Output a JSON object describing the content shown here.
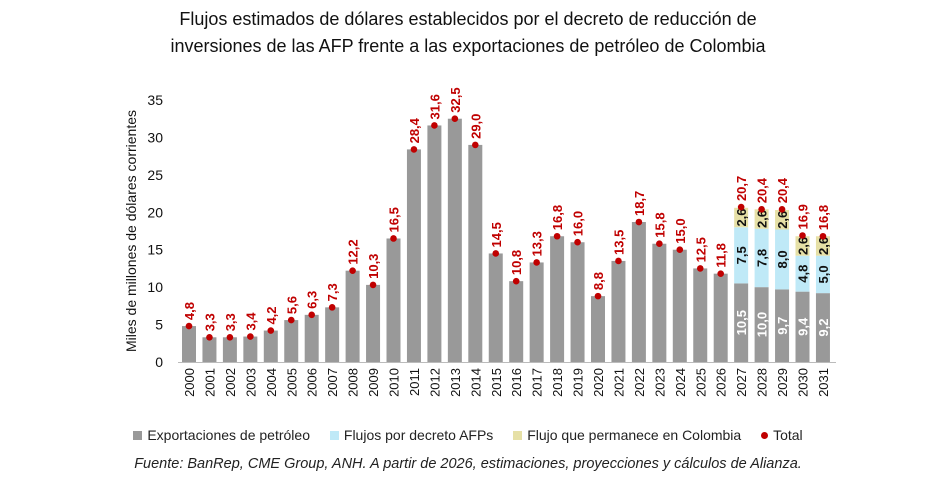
{
  "chart_data": {
    "type": "bar",
    "stacked": true,
    "title": [
      "Flujos estimados de dólares establecidos por el decreto de reducción de",
      "inversiones de las AFP frente a las exportaciones de petróleo de Colombia"
    ],
    "ylabel": "Miles de millones de dólares corrientes",
    "ylim": [
      0,
      35
    ],
    "yticks": [
      "0",
      "5",
      "10",
      "15",
      "20",
      "25",
      "30",
      "35"
    ],
    "grid": false,
    "legend_position": "bottom",
    "categories": [
      "2000",
      "2001",
      "2002",
      "2003",
      "2004",
      "2005",
      "2006",
      "2007",
      "2008",
      "2009",
      "2010",
      "2011",
      "2012",
      "2013",
      "2014",
      "2015",
      "2016",
      "2017",
      "2018",
      "2019",
      "2020",
      "2021",
      "2022",
      "2023",
      "2024",
      "2025",
      "2026",
      "2027",
      "2028",
      "2029",
      "2030",
      "2031"
    ],
    "series": [
      {
        "name": "Exportaciones de petróleo",
        "color": "#999999",
        "values": [
          4.8,
          3.3,
          3.3,
          3.4,
          4.2,
          5.6,
          6.3,
          7.3,
          12.2,
          10.3,
          16.5,
          28.4,
          31.6,
          32.5,
          29.0,
          14.5,
          10.8,
          13.3,
          16.8,
          16.0,
          8.8,
          13.5,
          18.7,
          15.8,
          15.0,
          12.5,
          11.8,
          10.5,
          10.0,
          9.7,
          9.4,
          9.2
        ],
        "labels": [
          null,
          null,
          null,
          null,
          null,
          null,
          null,
          null,
          null,
          null,
          null,
          null,
          null,
          null,
          null,
          null,
          null,
          null,
          null,
          null,
          null,
          null,
          null,
          null,
          null,
          null,
          null,
          "10,5",
          "10,0",
          "9,7",
          "9,4",
          "9,2"
        ]
      },
      {
        "name": "Flujos por decreto AFPs",
        "color": "#bfe9f7",
        "values": [
          0,
          0,
          0,
          0,
          0,
          0,
          0,
          0,
          0,
          0,
          0,
          0,
          0,
          0,
          0,
          0,
          0,
          0,
          0,
          0,
          0,
          0,
          0,
          0,
          0,
          0,
          0,
          7.5,
          7.8,
          8.0,
          4.8,
          5.0
        ],
        "labels": [
          null,
          null,
          null,
          null,
          null,
          null,
          null,
          null,
          null,
          null,
          null,
          null,
          null,
          null,
          null,
          null,
          null,
          null,
          null,
          null,
          null,
          null,
          null,
          null,
          null,
          null,
          null,
          "7,5",
          "7,8",
          "8,0",
          "4,8",
          "5,0"
        ]
      },
      {
        "name": "Flujo que permanece en Colombia",
        "color": "#e6e0a6",
        "values": [
          0,
          0,
          0,
          0,
          0,
          0,
          0,
          0,
          0,
          0,
          0,
          0,
          0,
          0,
          0,
          0,
          0,
          0,
          0,
          0,
          0,
          0,
          0,
          0,
          0,
          0,
          0,
          2.6,
          2.6,
          2.6,
          2.6,
          2.6
        ],
        "labels": [
          null,
          null,
          null,
          null,
          null,
          null,
          null,
          null,
          null,
          null,
          null,
          null,
          null,
          null,
          null,
          null,
          null,
          null,
          null,
          null,
          null,
          null,
          null,
          null,
          null,
          null,
          null,
          "2,6",
          "2,6",
          "2,6",
          "2,6",
          "2,6"
        ]
      }
    ],
    "total": {
      "name": "Total",
      "color": "#c00000",
      "values": [
        4.8,
        3.3,
        3.3,
        3.4,
        4.2,
        5.6,
        6.3,
        7.3,
        12.2,
        10.3,
        16.5,
        28.4,
        31.6,
        32.5,
        29.0,
        14.5,
        10.8,
        13.3,
        16.8,
        16.0,
        8.8,
        13.5,
        18.7,
        15.8,
        15.0,
        12.5,
        11.8,
        20.7,
        20.4,
        20.4,
        16.9,
        16.8
      ],
      "labels": [
        "4,8",
        "3,3",
        "3,3",
        "3,4",
        "4,2",
        "5,6",
        "6,3",
        "7,3",
        "12,2",
        "10,3",
        "16,5",
        "28,4",
        "31,6",
        "32,5",
        "29,0",
        "14,5",
        "10,8",
        "13,3",
        "16,8",
        "16,0",
        "8,8",
        "13,5",
        "18,7",
        "15,8",
        "15,0",
        "12,5",
        "11,8",
        "20,7",
        "20,4",
        "20,4",
        "16,9",
        "16,8"
      ]
    },
    "source": "Fuente: BanRep, CME Group, ANH. A partir de 2026, estimaciones, proyecciones y cálculos de Alianza."
  }
}
